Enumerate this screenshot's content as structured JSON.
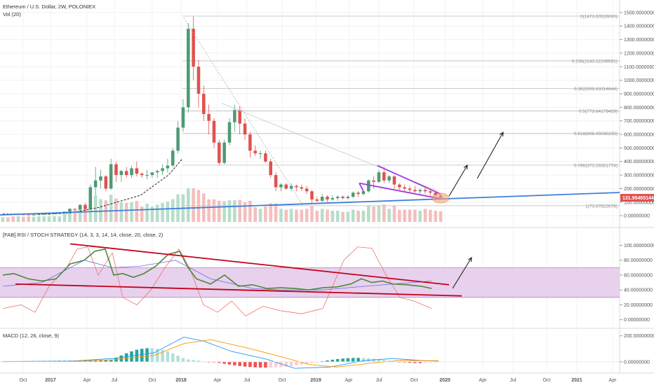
{
  "header": {
    "title": "Ethereum / U.S. Dollar, 2W, POLONIEX",
    "vol_label": "Vol (20)",
    "rsi_label": "[FAB] RSI / STOCH STRATEGY (14, 3, 3, 14, 14, close, 20, close, 2)",
    "macd_label": "MACD (12, 26, close, 9)"
  },
  "price_badge": "131.95465144",
  "colors": {
    "up": "#4e9a74",
    "down": "#e0524f",
    "trend_blue": "#3f7fd6",
    "trend_red": "#c4001a",
    "purple": "#a13fe0",
    "band": "#e2c6e8"
  },
  "chart_data": [
    {
      "type": "candlestick",
      "title": "Ethereum / U.S. Dollar, 2W, POLONIEX",
      "y_ticks": [
        "1500.00000000",
        "1400.00000000",
        "1300.00000000",
        "1200.00000000",
        "1100.00000000",
        "1000.00000000",
        "900.00000000",
        "800.00000000",
        "700.00000000",
        "600.00000000",
        "500.00000000",
        "400.00000000",
        "300.00000000",
        "200.00000000",
        "100.00000000",
        "0.00000000"
      ],
      "x_ticks": [
        "Oct",
        "2017",
        "Apr",
        "Jul",
        "Oct",
        "2018",
        "Apr",
        "Jul",
        "Oct",
        "2019",
        "Apr",
        "Jul",
        "Oct",
        "2020",
        "Apr",
        "Jul",
        "Oct",
        "2021",
        "Apr"
      ],
      "ylim": [
        -20,
        1520
      ],
      "fib_levels": [
        {
          "label": "0(1473.60528000)",
          "value": 1473.6
        },
        {
          "label": "0.236(1143.22249591)",
          "value": 1143.2
        },
        {
          "label": "0.382(938.83314644)",
          "value": 938.8
        },
        {
          "label": "0.5(773.64179429)",
          "value": 773.6
        },
        {
          "label": "0.618(608.45036235)",
          "value": 608.5
        },
        {
          "label": "0.786(373.26351774)",
          "value": 373.3
        },
        {
          "label": "1(73.67822678)",
          "value": 73.7
        }
      ],
      "ohlc": [
        [
          12,
          13,
          11,
          12
        ],
        [
          12,
          13,
          11,
          11
        ],
        [
          11,
          12,
          8,
          8
        ],
        [
          8,
          11,
          7,
          10
        ],
        [
          10,
          11,
          8,
          9
        ],
        [
          9,
          11,
          7,
          7
        ],
        [
          7,
          9,
          6,
          8
        ],
        [
          8,
          11,
          7,
          10
        ],
        [
          10,
          13,
          9,
          12
        ],
        [
          12,
          15,
          11,
          13
        ],
        [
          13,
          17,
          12,
          16
        ],
        [
          16,
          19,
          15,
          18
        ],
        [
          18,
          32,
          17,
          30
        ],
        [
          30,
          52,
          28,
          50
        ],
        [
          50,
          55,
          40,
          45
        ],
        [
          45,
          85,
          44,
          80
        ],
        [
          80,
          95,
          40,
          50
        ],
        [
          50,
          230,
          48,
          210
        ],
        [
          210,
          360,
          150,
          260
        ],
        [
          260,
          340,
          200,
          290
        ],
        [
          290,
          300,
          180,
          200
        ],
        [
          200,
          420,
          190,
          380
        ],
        [
          380,
          400,
          250,
          300
        ],
        [
          300,
          340,
          250,
          330
        ],
        [
          330,
          360,
          280,
          300
        ],
        [
          300,
          370,
          280,
          350
        ],
        [
          350,
          400,
          290,
          310
        ],
        [
          310,
          320,
          280,
          300
        ],
        [
          300,
          340,
          270,
          300
        ],
        [
          300,
          320,
          280,
          320
        ],
        [
          320,
          340,
          280,
          330
        ],
        [
          330,
          380,
          300,
          350
        ],
        [
          350,
          420,
          320,
          370
        ],
        [
          370,
          500,
          360,
          480
        ],
        [
          480,
          700,
          460,
          650
        ],
        [
          650,
          860,
          620,
          800
        ],
        [
          800,
          1420,
          760,
          1380
        ],
        [
          1380,
          1470,
          1000,
          1100
        ],
        [
          1100,
          1150,
          800,
          900
        ],
        [
          900,
          960,
          700,
          750
        ],
        [
          750,
          820,
          600,
          700
        ],
        [
          700,
          720,
          500,
          540
        ],
        [
          540,
          560,
          370,
          390
        ],
        [
          390,
          560,
          380,
          540
        ],
        [
          540,
          720,
          520,
          690
        ],
        [
          690,
          820,
          620,
          780
        ],
        [
          780,
          810,
          600,
          680
        ],
        [
          680,
          720,
          560,
          600
        ],
        [
          600,
          620,
          430,
          480
        ],
        [
          480,
          520,
          440,
          460
        ],
        [
          460,
          480,
          420,
          460
        ],
        [
          460,
          480,
          390,
          400
        ],
        [
          400,
          420,
          280,
          300
        ],
        [
          300,
          320,
          180,
          210
        ],
        [
          210,
          240,
          180,
          230
        ],
        [
          230,
          240,
          190,
          200
        ],
        [
          200,
          240,
          180,
          220
        ],
        [
          220,
          230,
          180,
          210
        ],
        [
          210,
          230,
          180,
          200
        ],
        [
          200,
          220,
          160,
          180
        ],
        [
          180,
          190,
          90,
          120
        ],
        [
          120,
          140,
          100,
          110
        ],
        [
          110,
          160,
          100,
          140
        ],
        [
          140,
          150,
          100,
          120
        ],
        [
          120,
          150,
          110,
          130
        ],
        [
          130,
          150,
          110,
          140
        ],
        [
          140,
          150,
          120,
          130
        ],
        [
          130,
          150,
          120,
          140
        ],
        [
          140,
          180,
          130,
          170
        ],
        [
          170,
          180,
          140,
          160
        ],
        [
          160,
          190,
          150,
          180
        ],
        [
          180,
          270,
          170,
          260
        ],
        [
          260,
          290,
          200,
          250
        ],
        [
          250,
          340,
          240,
          320
        ],
        [
          320,
          360,
          240,
          260
        ],
        [
          260,
          300,
          240,
          290
        ],
        [
          290,
          300,
          200,
          230
        ],
        [
          230,
          240,
          190,
          210
        ],
        [
          210,
          230,
          180,
          200
        ],
        [
          200,
          220,
          170,
          190
        ],
        [
          190,
          220,
          170,
          180
        ],
        [
          180,
          200,
          160,
          190
        ],
        [
          190,
          220,
          160,
          180
        ],
        [
          180,
          200,
          150,
          170
        ],
        [
          170,
          180,
          140,
          150
        ],
        [
          150,
          160,
          125,
          132
        ]
      ]
    },
    {
      "type": "line",
      "title": "[FAB] RSI / STOCH STRATEGY (14, 3, 3, 14, 14, close, 20, close, 2)",
      "y_ticks": [
        "100.00000000",
        "80.00000000",
        "60.00000000",
        "40.00000000",
        "20.00000000",
        "0.00000000"
      ],
      "ylim": [
        -5,
        108
      ],
      "band": [
        30,
        70
      ]
    },
    {
      "type": "histogram",
      "title": "MACD (12, 26, close, 9)",
      "y_ticks": [
        "200.00000000",
        "0.00000000"
      ],
      "ylim": [
        -60,
        220
      ]
    }
  ]
}
